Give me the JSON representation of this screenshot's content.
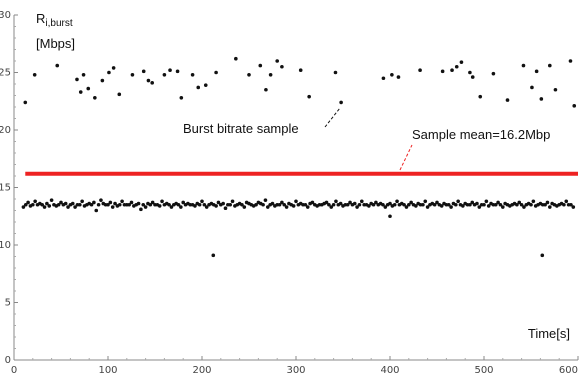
{
  "chart_data": {
    "type": "scatter",
    "title": "",
    "xlabel": "Time[s]",
    "ylabel_main": "R",
    "ylabel_sub": "i,burst",
    "ylabel_unit": "[Mbps]",
    "xlim": [
      0,
      600
    ],
    "ylim": [
      0,
      30
    ],
    "xticks": [
      0,
      100,
      200,
      300,
      400,
      500,
      600
    ],
    "yticks": [
      0,
      5,
      10,
      15,
      20,
      25,
      30
    ],
    "grid": false,
    "mean": {
      "value": 16.2,
      "label": "Sample mean=16.2Mbp",
      "color": "#ee2222"
    },
    "sample_annotation": "Burst bitrate sample",
    "colors": {
      "points": "#111111",
      "axis": "#888888"
    },
    "high_series": {
      "x": [
        12,
        22,
        46,
        67,
        71,
        74,
        79,
        86,
        94,
        101,
        106,
        112,
        126,
        138,
        143,
        147,
        160,
        166,
        174,
        178,
        190,
        196,
        204,
        215,
        236,
        250,
        262,
        268,
        273,
        280,
        285,
        305,
        314,
        342,
        348,
        393,
        402,
        409,
        432,
        456,
        466,
        471,
        476,
        485,
        488,
        496,
        510,
        525,
        542,
        551,
        556,
        561,
        570,
        576,
        592,
        596
      ],
      "y": [
        22.4,
        24.8,
        25.6,
        24.4,
        23.3,
        24.8,
        23.6,
        22.8,
        24.3,
        25.0,
        25.4,
        23.1,
        24.8,
        25.1,
        24.3,
        24.1,
        24.8,
        25.2,
        25.1,
        22.8,
        24.8,
        23.7,
        23.9,
        25.0,
        26.2,
        24.8,
        25.6,
        23.5,
        24.8,
        26.0,
        25.5,
        25.2,
        22.9,
        25.0,
        22.4,
        24.5,
        24.8,
        24.6,
        25.2,
        25.1,
        25.2,
        25.5,
        25.9,
        25.0,
        24.6,
        22.9,
        24.9,
        22.6,
        25.6,
        23.7,
        25.1,
        22.7,
        25.6,
        23.5,
        26.0,
        22.1
      ]
    },
    "outliers": {
      "x": [
        212,
        400,
        562
      ],
      "y": [
        9.1,
        12.5,
        9.1
      ]
    },
    "low_series": {
      "x_start": 10,
      "x_step": 2.5,
      "y": [
        13.3,
        13.5,
        13.7,
        13.4,
        13.5,
        13.8,
        13.5,
        13.6,
        13.5,
        13.3,
        13.6,
        13.4,
        13.9,
        13.5,
        13.4,
        13.5,
        13.7,
        13.5,
        13.6,
        13.3,
        13.5,
        13.6,
        13.3,
        13.5,
        13.5,
        13.8,
        13.4,
        13.5,
        13.6,
        13.5,
        13.7,
        13.0,
        13.5,
        13.9,
        13.6,
        13.5,
        13.5,
        13.7,
        13.3,
        13.6,
        13.4,
        13.5,
        13.8,
        13.5,
        13.5,
        13.5,
        13.7,
        13.4,
        13.5,
        13.6,
        13.1,
        13.5,
        13.3,
        13.6,
        13.5,
        13.7,
        13.5,
        13.5,
        13.4,
        13.8,
        13.5,
        13.6,
        13.5,
        13.3,
        13.5,
        13.6,
        13.5,
        13.3,
        13.7,
        13.5,
        13.6,
        13.5,
        13.5,
        13.4,
        13.6,
        13.5,
        13.8,
        13.5,
        13.3,
        13.5,
        13.6,
        13.5,
        13.4,
        13.7,
        13.5,
        13.6,
        13.2,
        13.5,
        13.5,
        13.8,
        13.4,
        13.5,
        13.6,
        13.5,
        13.3,
        13.7,
        13.6,
        13.5,
        13.4,
        13.5,
        13.7,
        13.6,
        13.5,
        13.9,
        13.3,
        13.5,
        13.6,
        13.4,
        13.5,
        13.5,
        13.7,
        13.5,
        13.3,
        13.6,
        13.5,
        13.4,
        13.8,
        13.5,
        13.6,
        13.5,
        13.5,
        13.3,
        13.6,
        13.7,
        13.5,
        13.4,
        13.5,
        13.5,
        13.6,
        13.7,
        13.5,
        13.3,
        13.5,
        13.8,
        13.5,
        13.6,
        13.4,
        13.5,
        13.5,
        13.7,
        13.5,
        13.6,
        13.3,
        13.5,
        13.8,
        13.5,
        13.5,
        13.4,
        13.6,
        13.5,
        13.7,
        13.5,
        13.6,
        13.5,
        13.3,
        13.5,
        13.6,
        13.4,
        13.5,
        13.8,
        13.5,
        13.6,
        13.5,
        13.3,
        13.5,
        13.7,
        13.5,
        13.4,
        13.6,
        13.5,
        13.5,
        13.8,
        13.3,
        13.5,
        13.6,
        13.5,
        13.7,
        13.5,
        13.4,
        13.6,
        13.5,
        13.5,
        13.3,
        13.6,
        13.5,
        13.8,
        13.5,
        13.4,
        13.6,
        13.5,
        13.5,
        13.7,
        13.5,
        13.6,
        13.3,
        13.5,
        13.5,
        13.8,
        13.4,
        13.6,
        13.5,
        13.5,
        13.7,
        13.5,
        13.3,
        13.6,
        13.5,
        13.4,
        13.5,
        13.6,
        13.5,
        13.7,
        13.5,
        13.3,
        13.5,
        13.6,
        13.5,
        13.8,
        13.4,
        13.5,
        13.6,
        13.5,
        13.5,
        13.7,
        13.3,
        13.6,
        13.5,
        13.4,
        13.5,
        13.6,
        13.5,
        13.8,
        13.5,
        13.5,
        13.3
      ]
    }
  }
}
